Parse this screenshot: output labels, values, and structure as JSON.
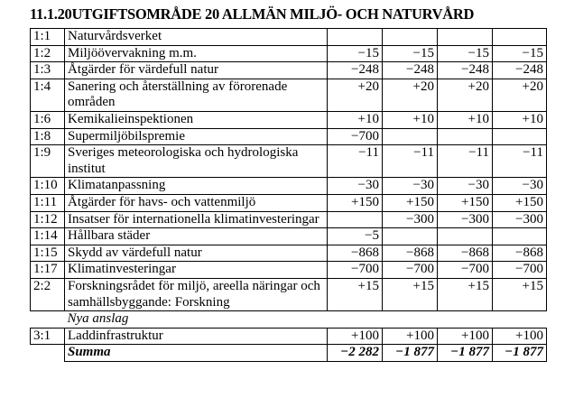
{
  "title": "11.1.20UTGIFTSOMRÅDE 20 ALLMÄN MILJÖ- OCH NATURVÅRD",
  "rows": [
    {
      "code": "1:1",
      "name": "Naturvårdsverket",
      "values": [
        "",
        "",
        "",
        ""
      ]
    },
    {
      "code": "1:2",
      "name": "Miljöövervakning m.m.",
      "values": [
        "−15",
        "−15",
        "−15",
        "−15"
      ]
    },
    {
      "code": "1:3",
      "name": "Åtgärder för värdefull natur",
      "values": [
        "−248",
        "−248",
        "−248",
        "−248"
      ]
    },
    {
      "code": "1:4",
      "name": "Sanering och återställning av förorenade områden",
      "values": [
        "+20",
        "+20",
        "+20",
        "+20"
      ]
    },
    {
      "code": "1:6",
      "name": "Kemikalieinspektionen",
      "values": [
        "+10",
        "+10",
        "+10",
        "+10"
      ]
    },
    {
      "code": "1:8",
      "name": "Supermiljöbilspremie",
      "values": [
        "−700",
        "",
        "",
        ""
      ]
    },
    {
      "code": "1:9",
      "name": "Sveriges meteorologiska och hydrologiska institut",
      "values": [
        "−11",
        "−11",
        "−11",
        "−11"
      ]
    },
    {
      "code": "1:10",
      "name": "Klimatanpassning",
      "values": [
        "−30",
        "−30",
        "−30",
        "−30"
      ]
    },
    {
      "code": "1:11",
      "name": "Åtgärder för havs- och vattenmiljö",
      "values": [
        "+150",
        "+150",
        "+150",
        "+150"
      ]
    },
    {
      "code": "1:12",
      "name": "Insatser för internationella klimatinvesteringar",
      "values": [
        "",
        "−300",
        "−300",
        "−300"
      ]
    },
    {
      "code": "1:14",
      "name": "Hållbara städer",
      "values": [
        "−5",
        "",
        "",
        ""
      ]
    },
    {
      "code": "1:15",
      "name": "Skydd av värdefull natur",
      "values": [
        "−868",
        "−868",
        "−868",
        "−868"
      ]
    },
    {
      "code": "1:17",
      "name": "Klimatinvesteringar",
      "values": [
        "−700",
        "−700",
        "−700",
        "−700"
      ]
    },
    {
      "code": "2:2",
      "name": "Forskningsrådet för miljö, areella näringar och samhällsbyggande: Forskning",
      "values": [
        "+15",
        "+15",
        "+15",
        "+15"
      ]
    }
  ],
  "new_section_label": "Nya anslag",
  "new_rows": [
    {
      "code": "3:1",
      "name": "Laddinfrastruktur",
      "values": [
        "+100",
        "+100",
        "+100",
        "+100"
      ]
    }
  ],
  "sum": {
    "label": "Summa",
    "values": [
      "−2 282",
      "−1 877",
      "−1 877",
      "−1 877"
    ]
  }
}
